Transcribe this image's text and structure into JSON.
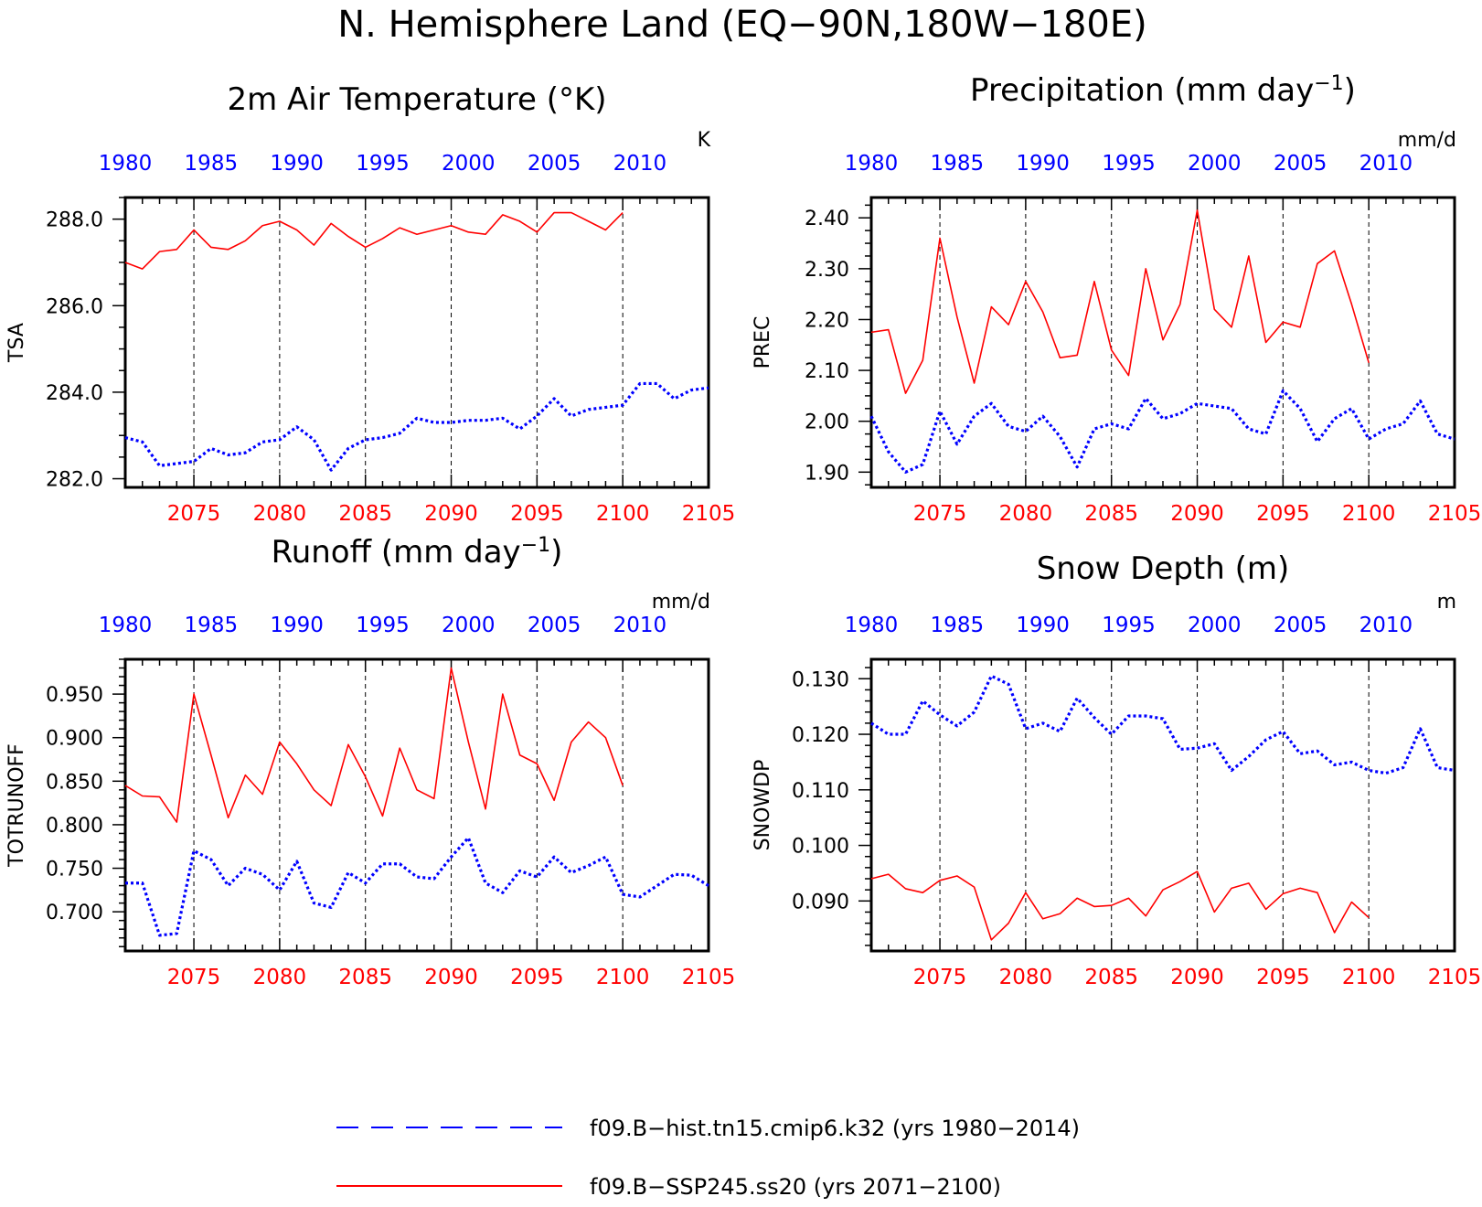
{
  "page_title": "N. Hemisphere Land (EQ−90N,180W−180E)",
  "colors": {
    "historical": "#0000ff",
    "future": "#ff0000",
    "axis": "#000000"
  },
  "legend": {
    "placement": "bottom-center",
    "entries": [
      {
        "label": "f09.B−hist.tn15.cmip6.k32 (yrs 1980−2014)",
        "color": "#0000ff",
        "style": "dashed"
      },
      {
        "label": "f09.B−SSP245.ss20 (yrs 2071−2100)",
        "color": "#ff0000",
        "style": "solid"
      }
    ]
  },
  "chart_data": [
    {
      "type": "line",
      "title": "2m Air Temperature (°K)",
      "title_sup": "",
      "title_tail": "",
      "ylabel": "TSA",
      "units": "K",
      "ylim": [
        281.8,
        288.5
      ],
      "yticks": [
        282.0,
        284.0,
        286.0,
        288.0
      ],
      "yticklabels": [
        "282.0",
        "284.0",
        "286.0",
        "288.0"
      ],
      "ticks_per_major": 4,
      "bottom_axis": {
        "range": [
          2071,
          2105
        ],
        "ticks": [
          2075,
          2080,
          2085,
          2090,
          2095,
          2100,
          2105
        ],
        "color": "#ff0000"
      },
      "top_axis": {
        "ticks": [
          1980,
          1985,
          1990,
          1995,
          2000,
          2005,
          2010
        ],
        "color": "#0000ff"
      },
      "gridlines": "vertical dashed at bottom-axis major ticks",
      "series": [
        {
          "color": "#0000ff",
          "style": "dashed",
          "x_start": 2071,
          "values": [
            282.95,
            282.85,
            282.3,
            282.35,
            282.4,
            282.7,
            282.55,
            282.6,
            282.85,
            282.9,
            283.2,
            282.9,
            282.2,
            282.7,
            282.9,
            282.95,
            283.05,
            283.4,
            283.3,
            283.3,
            283.35,
            283.35,
            283.4,
            283.15,
            283.45,
            283.85,
            283.45,
            283.6,
            283.65,
            283.7,
            284.2,
            284.2,
            283.85,
            284.05,
            284.1
          ]
        },
        {
          "color": "#ff0000",
          "style": "solid",
          "x_start": 2071,
          "values": [
            287.0,
            286.85,
            287.25,
            287.3,
            287.75,
            287.35,
            287.3,
            287.5,
            287.85,
            287.95,
            287.75,
            287.4,
            287.9,
            287.6,
            287.35,
            287.55,
            287.8,
            287.65,
            287.75,
            287.85,
            287.7,
            287.65,
            288.1,
            287.95,
            287.7,
            288.15,
            288.15,
            287.95,
            287.75,
            288.15
          ]
        }
      ]
    },
    {
      "type": "line",
      "title": "Precipitation (mm day",
      "title_sup": "−1",
      "title_tail": ")",
      "ylabel": "PREC",
      "units": "mm/d",
      "ylim": [
        1.87,
        2.44
      ],
      "yticks": [
        1.9,
        2.0,
        2.1,
        2.2,
        2.3,
        2.4
      ],
      "yticklabels": [
        "1.90",
        "2.00",
        "2.10",
        "2.20",
        "2.30",
        "2.40"
      ],
      "ticks_per_major": 4,
      "bottom_axis": {
        "range": [
          2071,
          2105
        ],
        "ticks": [
          2075,
          2080,
          2085,
          2090,
          2095,
          2100,
          2105
        ],
        "color": "#ff0000"
      },
      "top_axis": {
        "ticks": [
          1980,
          1985,
          1990,
          1995,
          2000,
          2005,
          2010
        ],
        "color": "#0000ff"
      },
      "gridlines": "vertical dashed at bottom-axis major ticks",
      "series": [
        {
          "color": "#0000ff",
          "style": "dashed",
          "x_start": 2071,
          "values": [
            2.01,
            1.94,
            1.9,
            1.915,
            2.02,
            1.955,
            2.01,
            2.035,
            1.99,
            1.98,
            2.01,
            1.97,
            1.91,
            1.985,
            1.995,
            1.985,
            2.045,
            2.005,
            2.015,
            2.035,
            2.03,
            2.025,
            1.985,
            1.975,
            2.06,
            2.025,
            1.96,
            2.005,
            2.025,
            1.965,
            1.985,
            1.995,
            2.04,
            1.975,
            1.965
          ]
        },
        {
          "color": "#ff0000",
          "style": "solid",
          "x_start": 2071,
          "values": [
            2.175,
            2.18,
            2.055,
            2.12,
            2.36,
            2.205,
            2.075,
            2.225,
            2.19,
            2.275,
            2.215,
            2.125,
            2.13,
            2.275,
            2.14,
            2.09,
            2.3,
            2.16,
            2.23,
            2.415,
            2.22,
            2.185,
            2.325,
            2.155,
            2.195,
            2.185,
            2.31,
            2.335,
            2.23,
            2.115
          ]
        }
      ]
    },
    {
      "type": "line",
      "title": "Runoff (mm day",
      "title_sup": "−1",
      "title_tail": ")",
      "ylabel": "TOTRUNOFF",
      "units": "mm/d",
      "ylim": [
        0.655,
        0.99
      ],
      "yticks": [
        0.7,
        0.75,
        0.8,
        0.85,
        0.9,
        0.95
      ],
      "yticklabels": [
        "0.700",
        "0.750",
        "0.800",
        "0.850",
        "0.900",
        "0.950"
      ],
      "ticks_per_major": 5,
      "bottom_axis": {
        "range": [
          2071,
          2105
        ],
        "ticks": [
          2075,
          2080,
          2085,
          2090,
          2095,
          2100,
          2105
        ],
        "color": "#ff0000"
      },
      "top_axis": {
        "ticks": [
          1980,
          1985,
          1990,
          1995,
          2000,
          2005,
          2010
        ],
        "color": "#0000ff"
      },
      "gridlines": "vertical dashed at bottom-axis major ticks",
      "series": [
        {
          "color": "#0000ff",
          "style": "dashed",
          "x_start": 2071,
          "values": [
            0.733,
            0.733,
            0.673,
            0.675,
            0.77,
            0.76,
            0.73,
            0.75,
            0.743,
            0.725,
            0.758,
            0.71,
            0.705,
            0.745,
            0.733,
            0.755,
            0.755,
            0.74,
            0.738,
            0.763,
            0.785,
            0.733,
            0.722,
            0.747,
            0.74,
            0.763,
            0.745,
            0.753,
            0.763,
            0.72,
            0.717,
            0.73,
            0.743,
            0.742,
            0.73
          ]
        },
        {
          "color": "#ff0000",
          "style": "solid",
          "x_start": 2071,
          "values": [
            0.845,
            0.833,
            0.832,
            0.803,
            0.95,
            0.88,
            0.808,
            0.857,
            0.835,
            0.895,
            0.87,
            0.84,
            0.822,
            0.892,
            0.855,
            0.81,
            0.888,
            0.84,
            0.83,
            0.98,
            0.895,
            0.818,
            0.95,
            0.88,
            0.87,
            0.828,
            0.895,
            0.918,
            0.9,
            0.845
          ]
        }
      ]
    },
    {
      "type": "line",
      "title": "Snow Depth (m)",
      "title_sup": "",
      "title_tail": "",
      "ylabel": "SNOWDP",
      "units": "m",
      "ylim": [
        0.081,
        0.1335
      ],
      "yticks": [
        0.09,
        0.1,
        0.11,
        0.12,
        0.13
      ],
      "yticklabels": [
        "0.090",
        "0.100",
        "0.110",
        "0.120",
        "0.130"
      ],
      "ticks_per_major": 5,
      "bottom_axis": {
        "range": [
          2071,
          2105
        ],
        "ticks": [
          2075,
          2080,
          2085,
          2090,
          2095,
          2100,
          2105
        ],
        "color": "#ff0000"
      },
      "top_axis": {
        "ticks": [
          1980,
          1985,
          1990,
          1995,
          2000,
          2005,
          2010
        ],
        "color": "#0000ff"
      },
      "gridlines": "vertical dashed at bottom-axis major ticks",
      "series": [
        {
          "color": "#0000ff",
          "style": "dashed",
          "x_start": 2071,
          "values": [
            0.122,
            0.12,
            0.12,
            0.126,
            0.1235,
            0.1215,
            0.124,
            0.1305,
            0.129,
            0.121,
            0.122,
            0.1205,
            0.1265,
            0.123,
            0.12,
            0.1233,
            0.1233,
            0.1228,
            0.1173,
            0.1175,
            0.1183,
            0.1135,
            0.116,
            0.119,
            0.1205,
            0.1165,
            0.117,
            0.1145,
            0.115,
            0.1135,
            0.113,
            0.114,
            0.121,
            0.114,
            0.1135
          ]
        },
        {
          "color": "#ff0000",
          "style": "solid",
          "x_start": 2071,
          "values": [
            0.094,
            0.0948,
            0.0922,
            0.0915,
            0.0937,
            0.0945,
            0.0925,
            0.083,
            0.086,
            0.0915,
            0.0868,
            0.0877,
            0.0905,
            0.089,
            0.0892,
            0.0905,
            0.0873,
            0.092,
            0.0935,
            0.0953,
            0.088,
            0.0923,
            0.0932,
            0.0885,
            0.0913,
            0.0923,
            0.0915,
            0.0843,
            0.0898,
            0.087
          ]
        }
      ]
    }
  ]
}
